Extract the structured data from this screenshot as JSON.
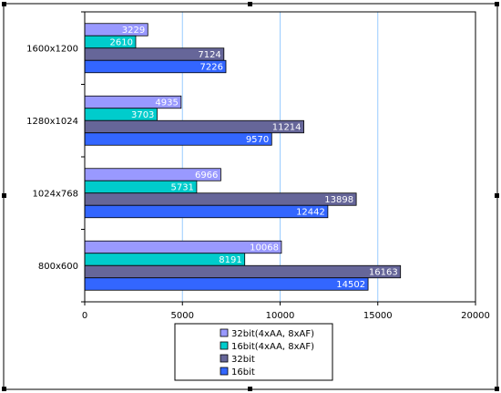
{
  "chart_data": {
    "type": "bar",
    "orientation": "horizontal",
    "categories": [
      "1600x1200",
      "1280x1024",
      "1024x768",
      "800x600"
    ],
    "series": [
      {
        "name": "32bit(4xAA, 8xAF)",
        "values": [
          3229,
          4935,
          6966,
          10068
        ]
      },
      {
        "name": "16bit(4xAA, 8xAF)",
        "values": [
          2610,
          3703,
          5731,
          8191
        ]
      },
      {
        "name": "32bit",
        "values": [
          7124,
          11214,
          13898,
          16163
        ]
      },
      {
        "name": "16bit",
        "values": [
          7226,
          9570,
          12442,
          14502
        ]
      }
    ],
    "xlim": [
      0,
      20000
    ],
    "xticks": [
      0,
      5000,
      10000,
      15000,
      20000
    ],
    "title": "",
    "xlabel": "",
    "ylabel": "",
    "grid": "vertical",
    "legend_position": "bottom",
    "colors": [
      "#9999ff",
      "#00cccc",
      "#666699",
      "#3366ff"
    ],
    "gridline_color": "#99ccff"
  }
}
